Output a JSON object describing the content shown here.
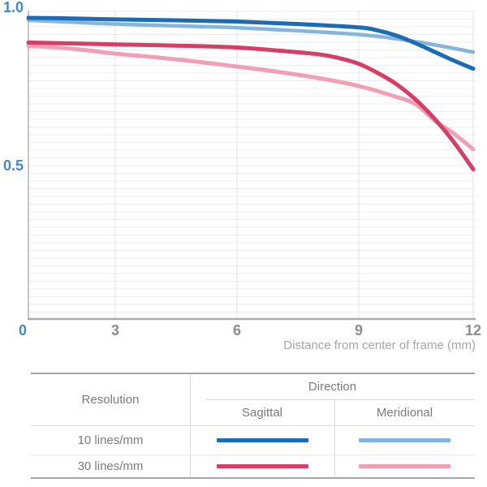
{
  "chart": {
    "y_axis_labels": [
      {
        "text": "1.0",
        "value": 1.0
      },
      {
        "text": "0.5",
        "value": 0.5
      }
    ],
    "x_axis_labels": [
      {
        "text": "0",
        "value": 0,
        "accent": true
      },
      {
        "text": "3",
        "value": 3,
        "accent": false
      },
      {
        "text": "6",
        "value": 6,
        "accent": false
      },
      {
        "text": "9",
        "value": 9,
        "accent": false
      },
      {
        "text": "12",
        "value": 12,
        "accent": false
      }
    ],
    "x_axis_title": "Distance from center of frame (mm)",
    "accent_label_color": "#4189c9",
    "tick_label_color": "#8c8c8c",
    "axis_title_color": "#a5a5a5"
  },
  "chart_data": {
    "type": "line",
    "title": "",
    "xlabel": "Distance from center of frame (mm)",
    "ylabel": "",
    "xlim": [
      0,
      12
    ],
    "ylim": [
      0,
      1.0
    ],
    "x_ticks": [
      0,
      3,
      6,
      9,
      12
    ],
    "y_tick_labels_shown": [
      1.0,
      0.5
    ],
    "minor_y_grid_step": 0.025,
    "grid": "on",
    "legend_position": "table below chart",
    "series": [
      {
        "name": "10 lines/mm Sagittal",
        "color": "#1b6cb5",
        "x": [
          0,
          1.5,
          3,
          4.5,
          6,
          7.5,
          9,
          9.5,
          10,
          10.5,
          11,
          11.5,
          12
        ],
        "values": [
          0.979,
          0.977,
          0.974,
          0.971,
          0.967,
          0.959,
          0.948,
          0.938,
          0.921,
          0.896,
          0.868,
          0.84,
          0.814
        ]
      },
      {
        "name": "10 lines/mm Meridional",
        "color": "#85b5dc",
        "x": [
          0,
          1.5,
          3,
          4.5,
          6,
          7.5,
          9,
          10,
          11,
          12
        ],
        "values": [
          0.971,
          0.965,
          0.959,
          0.953,
          0.947,
          0.937,
          0.925,
          0.911,
          0.891,
          0.868
        ]
      },
      {
        "name": "30 lines/mm Sagittal",
        "color": "#d53e66",
        "x": [
          0,
          1.5,
          3,
          4.5,
          6,
          7,
          8,
          8.5,
          9,
          9.5,
          10,
          10.5,
          11,
          11.5,
          12
        ],
        "values": [
          0.899,
          0.896,
          0.893,
          0.889,
          0.883,
          0.873,
          0.861,
          0.849,
          0.83,
          0.8,
          0.763,
          0.713,
          0.65,
          0.575,
          0.488
        ]
      },
      {
        "name": "30 lines/mm Meridional",
        "color": "#f0a0b4",
        "x": [
          0,
          1,
          2,
          3,
          4,
          5,
          6,
          7,
          8,
          9,
          10,
          10.5,
          11,
          11.5,
          12
        ],
        "values": [
          0.888,
          0.883,
          0.874,
          0.863,
          0.851,
          0.837,
          0.821,
          0.804,
          0.784,
          0.758,
          0.722,
          0.698,
          0.645,
          0.603,
          0.553
        ]
      }
    ]
  },
  "table": {
    "resolution_header": "Resolution",
    "direction_header": "Direction",
    "sagittal_header": "Sagittal",
    "meridional_header": "Meridional",
    "rows": [
      {
        "label": "10 lines/mm",
        "sagittal_color": "#1b6cb5",
        "meridional_color": "#85b5dc"
      },
      {
        "label": "30 lines/mm",
        "sagittal_color": "#d53e66",
        "meridional_color": "#f0a0b4"
      }
    ]
  }
}
